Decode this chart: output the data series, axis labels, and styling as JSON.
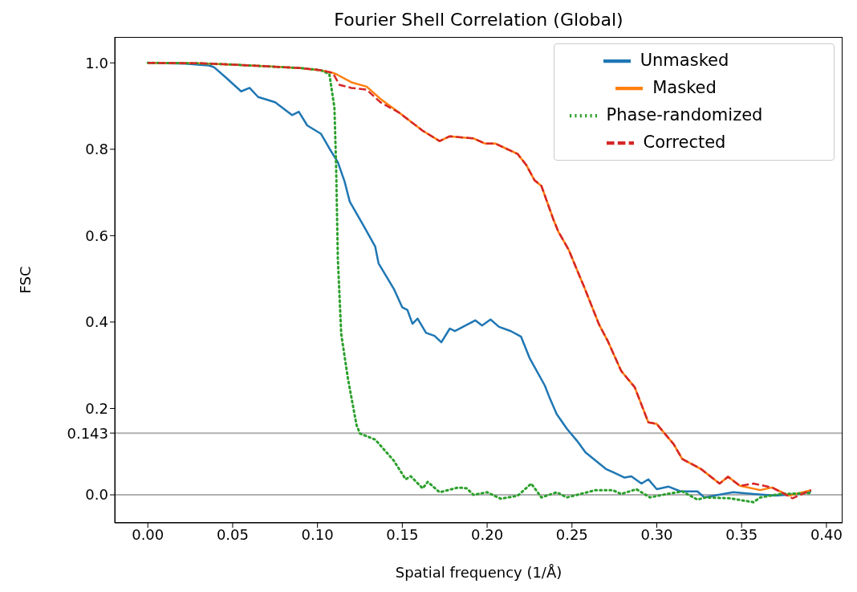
{
  "chart_data": {
    "type": "line",
    "title": "Fourier Shell Correlation (Global)",
    "xlabel": "Spatial frequency (1/Å)",
    "ylabel": "FSC",
    "xlim": [
      -0.0195,
      0.4095
    ],
    "xticks": [
      {
        "value": 0,
        "label": "0.00"
      },
      0.05,
      {
        "value": 0.1,
        "label": "0.10"
      },
      0.15,
      {
        "value": 0.2,
        "label": "0.20"
      },
      0.25,
      {
        "value": 0.3,
        "label": "0.30"
      },
      0.35,
      {
        "value": 0.4,
        "label": "0.40"
      }
    ],
    "ylim": [
      -0.065,
      1.06
    ],
    "yticks": [
      {
        "value": 0,
        "label": "0.0"
      },
      0.143,
      0.2,
      0.4,
      0.6,
      0.8,
      {
        "value": 1,
        "label": "1.0"
      }
    ],
    "grid": false,
    "legend": "top right",
    "ref_lines": [
      {
        "axis": "y",
        "value": 0,
        "color": "#b0b0b0"
      },
      {
        "axis": "y",
        "value": 0.143,
        "color": "#b0b0b0"
      }
    ],
    "series": [
      {
        "name": "Unmasked",
        "color": "#1f77b4",
        "line_style": "solid",
        "x": [
          0,
          0.022,
          0.036,
          0.039,
          0.046,
          0.055,
          0.06,
          0.065,
          0.075,
          0.085,
          0.089,
          0.094,
          0.102,
          0.107,
          0.112,
          0.116,
          0.119,
          0.128,
          0.134,
          0.136,
          0.145,
          0.15,
          0.153,
          0.156,
          0.159,
          0.164,
          0.169,
          0.173,
          0.178,
          0.181,
          0.193,
          0.197,
          0.202,
          0.207,
          0.214,
          0.22,
          0.225,
          0.234,
          0.237,
          0.241,
          0.247,
          0.253,
          0.258,
          0.27,
          0.281,
          0.285,
          0.291,
          0.295,
          0.3,
          0.307,
          0.314,
          0.324,
          0.328,
          0.345,
          0.357,
          0.37,
          0.383,
          0.391
        ],
        "values": [
          1.0,
          0.998,
          0.994,
          0.99,
          0.966,
          0.934,
          0.942,
          0.921,
          0.909,
          0.879,
          0.887,
          0.855,
          0.836,
          0.802,
          0.77,
          0.725,
          0.679,
          0.617,
          0.575,
          0.536,
          0.477,
          0.434,
          0.428,
          0.396,
          0.408,
          0.375,
          0.368,
          0.353,
          0.385,
          0.379,
          0.404,
          0.392,
          0.406,
          0.389,
          0.379,
          0.366,
          0.317,
          0.253,
          0.223,
          0.187,
          0.153,
          0.125,
          0.098,
          0.06,
          0.04,
          0.043,
          0.026,
          0.036,
          0.013,
          0.019,
          0.008,
          0.008,
          -0.006,
          0.006,
          0.002,
          -0.002,
          0.002,
          0.008
        ]
      },
      {
        "name": "Masked",
        "color": "#ff7f0e",
        "line_style": "solid",
        "x": [
          0,
          0.03,
          0.05,
          0.07,
          0.09,
          0.102,
          0.109,
          0.111,
          0.12,
          0.129,
          0.137,
          0.148,
          0.157,
          0.162,
          0.172,
          0.178,
          0.192,
          0.199,
          0.205,
          0.211,
          0.218,
          0.223,
          0.228,
          0.232,
          0.239,
          0.242,
          0.248,
          0.254,
          0.257,
          0.266,
          0.271,
          0.279,
          0.287,
          0.295,
          0.3,
          0.31,
          0.315,
          0.326,
          0.337,
          0.342,
          0.349,
          0.361,
          0.368,
          0.378,
          0.391
        ],
        "values": [
          1.0,
          0.999,
          0.996,
          0.992,
          0.988,
          0.983,
          0.977,
          0.974,
          0.955,
          0.945,
          0.917,
          0.885,
          0.858,
          0.843,
          0.819,
          0.83,
          0.825,
          0.813,
          0.813,
          0.802,
          0.789,
          0.764,
          0.728,
          0.715,
          0.638,
          0.609,
          0.568,
          0.511,
          0.483,
          0.394,
          0.357,
          0.287,
          0.249,
          0.168,
          0.164,
          0.117,
          0.083,
          0.06,
          0.026,
          0.042,
          0.021,
          0.011,
          0.017,
          -0.002,
          0.011
        ]
      },
      {
        "name": "Phase-randomized",
        "color": "#2ca02c",
        "line_style": "dotted",
        "x": [
          0,
          0.03,
          0.05,
          0.07,
          0.09,
          0.102,
          0.107,
          0.11,
          0.111,
          0.112,
          0.114,
          0.118,
          0.123,
          0.125,
          0.134,
          0.145,
          0.152,
          0.155,
          0.162,
          0.165,
          0.172,
          0.183,
          0.188,
          0.192,
          0.2,
          0.208,
          0.218,
          0.226,
          0.232,
          0.241,
          0.247,
          0.264,
          0.274,
          0.279,
          0.288,
          0.296,
          0.306,
          0.315,
          0.324,
          0.329,
          0.343,
          0.357,
          0.361,
          0.373,
          0.391
        ],
        "values": [
          1.0,
          0.999,
          0.996,
          0.992,
          0.988,
          0.983,
          0.974,
          0.896,
          0.757,
          0.547,
          0.372,
          0.268,
          0.162,
          0.142,
          0.128,
          0.079,
          0.036,
          0.043,
          0.015,
          0.03,
          0.006,
          0.017,
          0.015,
          0.0,
          0.006,
          -0.009,
          -0.002,
          0.026,
          -0.006,
          0.006,
          -0.006,
          0.011,
          0.011,
          0.002,
          0.013,
          -0.006,
          0.002,
          0.008,
          -0.011,
          -0.006,
          -0.008,
          -0.017,
          -0.006,
          0.002,
          0.004
        ]
      },
      {
        "name": "Corrected",
        "color": "#d62728",
        "line_style": "dashed",
        "x": [
          0,
          0.03,
          0.05,
          0.07,
          0.09,
          0.102,
          0.109,
          0.113,
          0.12,
          0.129,
          0.137,
          0.148,
          0.157,
          0.162,
          0.172,
          0.178,
          0.192,
          0.199,
          0.205,
          0.211,
          0.218,
          0.223,
          0.228,
          0.232,
          0.239,
          0.242,
          0.248,
          0.254,
          0.257,
          0.266,
          0.271,
          0.279,
          0.287,
          0.295,
          0.3,
          0.31,
          0.315,
          0.326,
          0.337,
          0.342,
          0.349,
          0.357,
          0.368,
          0.38,
          0.391
        ],
        "values": [
          1.0,
          0.999,
          0.996,
          0.992,
          0.988,
          0.983,
          0.977,
          0.949,
          0.942,
          0.938,
          0.909,
          0.885,
          0.858,
          0.843,
          0.819,
          0.83,
          0.825,
          0.813,
          0.813,
          0.802,
          0.789,
          0.764,
          0.728,
          0.715,
          0.638,
          0.609,
          0.568,
          0.511,
          0.483,
          0.394,
          0.357,
          0.287,
          0.249,
          0.168,
          0.164,
          0.117,
          0.083,
          0.06,
          0.026,
          0.042,
          0.021,
          0.026,
          0.017,
          -0.008,
          0.011
        ]
      }
    ]
  }
}
